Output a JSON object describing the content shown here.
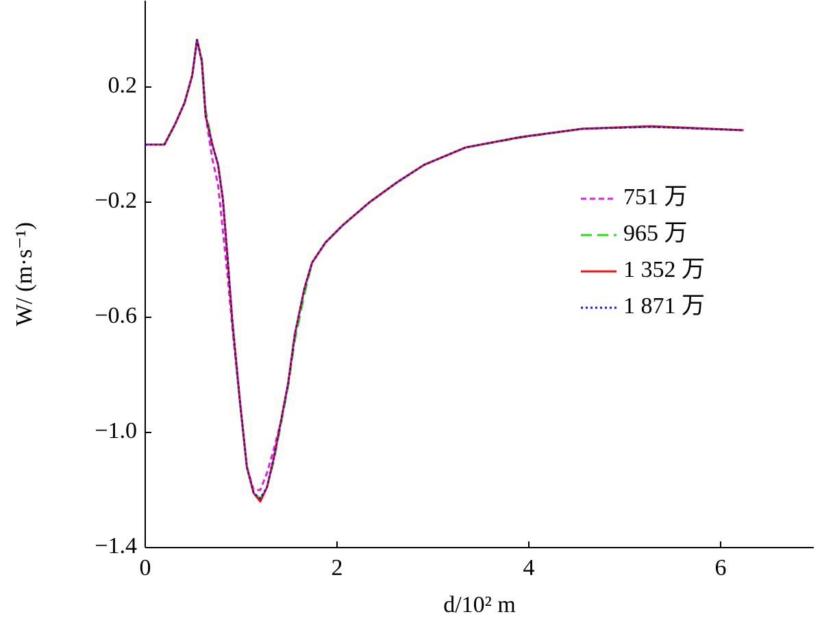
{
  "chart_data": {
    "type": "line",
    "xlabel": "d/10² m",
    "ylabel": "W/ (m·s⁻¹)",
    "xlim": [
      0,
      7
    ],
    "ylim": [
      -1.4,
      0.5
    ],
    "xticks": [
      0,
      2,
      4,
      6
    ],
    "yticks": [
      {
        "value": -1.4,
        "label": "−1.4"
      },
      {
        "value": -1.0,
        "label": "−1.0"
      },
      {
        "value": -0.6,
        "label": "−0.6"
      },
      {
        "value": -0.2,
        "label": "−0.2"
      },
      0.2
    ],
    "legend": "right",
    "x": [
      0,
      0.2,
      0.31,
      0.41,
      0.49,
      0.54,
      0.59,
      0.63,
      0.7,
      0.76,
      0.81,
      0.86,
      0.91,
      0.99,
      1.06,
      1.13,
      1.2,
      1.27,
      1.34,
      1.41,
      1.49,
      1.56,
      1.66,
      1.74,
      1.88,
      2.06,
      2.34,
      2.63,
      2.91,
      3.34,
      3.91,
      4.56,
      5.27,
      6.24
    ],
    "series": [
      {
        "name": "751 万",
        "color": "#e020e0",
        "dash": "8 5",
        "values": [
          0,
          0,
          0.07,
          0.145,
          0.24,
          0.364,
          0.29,
          0.1,
          -0.05,
          -0.14,
          -0.3,
          -0.46,
          -0.64,
          -0.9,
          -1.12,
          -1.2,
          -1.2,
          -1.14,
          -1.06,
          -0.97,
          -0.83,
          -0.66,
          -0.5,
          -0.41,
          -0.34,
          -0.28,
          -0.2,
          -0.13,
          -0.07,
          -0.01,
          0.026,
          0.055,
          0.062,
          0.05
        ]
      },
      {
        "name": "965 万",
        "color": "#22dd22",
        "dash": "16 8",
        "values": [
          0,
          0,
          0.07,
          0.145,
          0.24,
          0.364,
          0.3,
          0.12,
          0.0,
          -0.07,
          -0.19,
          -0.4,
          -0.62,
          -0.9,
          -1.12,
          -1.21,
          -1.23,
          -1.19,
          -1.1,
          -0.98,
          -0.84,
          -0.68,
          -0.52,
          -0.41,
          -0.34,
          -0.28,
          -0.2,
          -0.13,
          -0.07,
          -0.01,
          0.024,
          0.055,
          0.062,
          0.05
        ]
      },
      {
        "name": "1 352 万",
        "color": "#ee1111",
        "dash": "none",
        "values": [
          0,
          0,
          0.07,
          0.145,
          0.24,
          0.364,
          0.29,
          0.1,
          0.0,
          -0.07,
          -0.19,
          -0.4,
          -0.62,
          -0.9,
          -1.12,
          -1.21,
          -1.24,
          -1.19,
          -1.09,
          -0.97,
          -0.83,
          -0.66,
          -0.5,
          -0.41,
          -0.34,
          -0.28,
          -0.2,
          -0.13,
          -0.07,
          -0.01,
          0.026,
          0.055,
          0.064,
          0.05
        ]
      },
      {
        "name": "1 871 万",
        "color": "#1111ee",
        "dash": "3 4",
        "values": [
          0,
          0,
          0.07,
          0.145,
          0.24,
          0.364,
          0.29,
          0.1,
          0.0,
          -0.07,
          -0.19,
          -0.4,
          -0.62,
          -0.9,
          -1.12,
          -1.21,
          -1.23,
          -1.19,
          -1.09,
          -0.97,
          -0.83,
          -0.66,
          -0.5,
          -0.41,
          -0.34,
          -0.28,
          -0.2,
          -0.13,
          -0.07,
          -0.01,
          0.026,
          0.055,
          0.062,
          0.05
        ]
      }
    ]
  }
}
